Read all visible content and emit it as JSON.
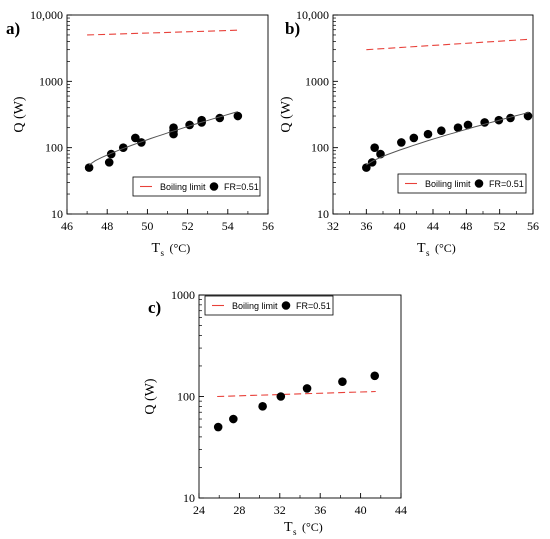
{
  "chart_data": [
    {
      "panel_label": "a)",
      "type": "scatter",
      "xlabel": "T",
      "xlabel_sub": "s",
      "xlabel_unit": "(°C)",
      "ylabel": "Q  (W)",
      "xlim": [
        46,
        56
      ],
      "ylim": [
        10,
        10000
      ],
      "yscale": "log",
      "xticks": [
        46,
        48,
        50,
        52,
        54,
        56
      ],
      "yticks": [
        {
          "value": 10,
          "label": "10"
        },
        {
          "value": 100,
          "label": "100"
        },
        {
          "value": 1000,
          "label": "1000"
        },
        {
          "value": 10000,
          "label": "10,000"
        }
      ],
      "legend": {
        "placement": "bottom-right",
        "line_label": "Boiling limit",
        "marker_label": "FR=0.51"
      },
      "series": [
        {
          "kind": "dashed-line",
          "color": "#e8413a",
          "x": [
            47,
            54.5
          ],
          "y": [
            5000,
            5900
          ]
        },
        {
          "kind": "points",
          "color": "#000000",
          "x": [
            47.1,
            48.1,
            48.2,
            48.8,
            49.4,
            49.7,
            51.3,
            51.3,
            51.3,
            52.1,
            52.7,
            52.7,
            53.6,
            54.5
          ],
          "y": [
            50,
            60,
            80,
            100,
            140,
            120,
            160,
            180,
            200,
            220,
            240,
            260,
            280,
            300
          ]
        },
        {
          "kind": "trend-line",
          "color": "#555555",
          "x": [
            47.1,
            54.5
          ],
          "y": [
            55,
            350
          ]
        }
      ]
    },
    {
      "panel_label": "b)",
      "type": "scatter",
      "xlabel": "T",
      "xlabel_sub": "s",
      "xlabel_unit": "(°C)",
      "ylabel": "Q  (W)",
      "xlim": [
        32,
        56
      ],
      "ylim": [
        10,
        10000
      ],
      "yscale": "log",
      "xticks": [
        32,
        36,
        40,
        44,
        48,
        52,
        56
      ],
      "yticks": [
        {
          "value": 10,
          "label": "10"
        },
        {
          "value": 100,
          "label": "100"
        },
        {
          "value": 1000,
          "label": "1000"
        },
        {
          "value": 10000,
          "label": "10,000"
        }
      ],
      "legend": {
        "placement": "bottom-right",
        "line_label": "Boiling limit",
        "marker_label": "FR=0.51"
      },
      "series": [
        {
          "kind": "dashed-line",
          "color": "#e8413a",
          "x": [
            36,
            55.5
          ],
          "y": [
            3000,
            4300
          ]
        },
        {
          "kind": "points",
          "color": "#000000",
          "x": [
            36,
            36.7,
            37,
            37.7,
            40.2,
            41.7,
            43.4,
            45,
            47,
            48.2,
            50.2,
            51.9,
            53.3,
            55.4
          ],
          "y": [
            50,
            60,
            100,
            80,
            120,
            140,
            160,
            180,
            200,
            220,
            240,
            260,
            280,
            300
          ]
        },
        {
          "kind": "trend-line",
          "color": "#555555",
          "x": [
            36,
            55.5
          ],
          "y": [
            55,
            340
          ]
        }
      ]
    },
    {
      "panel_label": "c)",
      "type": "scatter",
      "xlabel": "T",
      "xlabel_sub": "s",
      "xlabel_unit": "(°C)",
      "ylabel": "Q  (W)",
      "xlim": [
        24,
        44
      ],
      "ylim": [
        10,
        1000
      ],
      "yscale": "log",
      "xticks": [
        24,
        28,
        32,
        36,
        40,
        44
      ],
      "yticks": [
        {
          "value": 10,
          "label": "10"
        },
        {
          "value": 100,
          "label": "100"
        },
        {
          "value": 1000,
          "label": "1000"
        }
      ],
      "legend": {
        "placement": "top-left",
        "line_label": "Boiling limit",
        "marker_label": "FR=0.51"
      },
      "series": [
        {
          "kind": "dashed-line",
          "color": "#e8413a",
          "x": [
            25.8,
            41.5
          ],
          "y": [
            100,
            112
          ]
        },
        {
          "kind": "points",
          "color": "#000000",
          "x": [
            25.9,
            27.4,
            30.3,
            32.1,
            34.7,
            38.2,
            41.4
          ],
          "y": [
            50,
            60,
            80,
            100,
            120,
            140,
            160
          ]
        }
      ]
    }
  ]
}
